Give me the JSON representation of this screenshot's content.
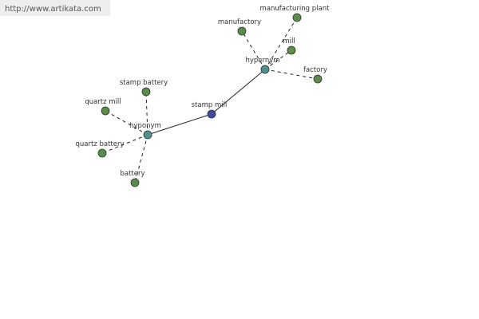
{
  "watermark": "http://www.artikata.com",
  "nodes": [
    {
      "label": "stamp mill"
    },
    {
      "label": "hypernym"
    },
    {
      "label": "hyponym"
    },
    {
      "label": "manufactory"
    },
    {
      "label": "manufacturing plant"
    },
    {
      "label": "mill"
    },
    {
      "label": "factory"
    },
    {
      "label": "stamp battery"
    },
    {
      "label": "quartz mill"
    },
    {
      "label": "quartz battery"
    },
    {
      "label": "battery"
    }
  ]
}
